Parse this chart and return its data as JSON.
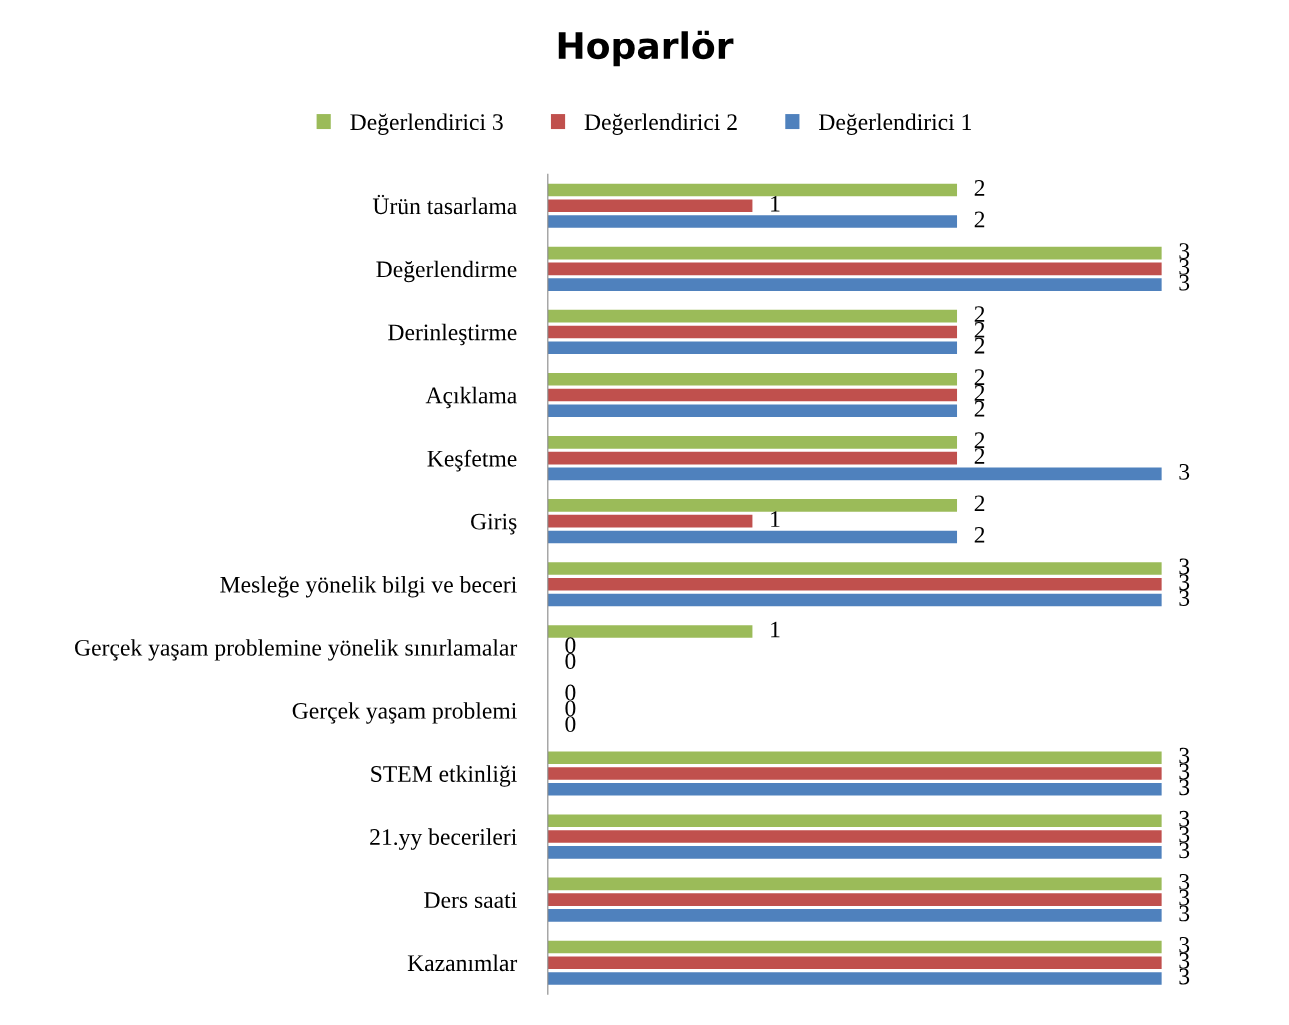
{
  "chart_data": {
    "type": "bar",
    "orientation": "horizontal",
    "title": "Hoparlör",
    "categories": [
      "Ürün tasarlama",
      "Değerlendirme",
      "Derinleştirme",
      "Açıklama",
      "Keşfetme",
      "Giriş",
      "Mesleğe yönelik bilgi ve beceri",
      "Gerçek yaşam problemine yönelik sınırlamalar",
      "Gerçek yaşam problemi",
      "STEM etkinliği",
      "21.yy becerileri",
      "Ders saati",
      "Kazanımlar"
    ],
    "series": [
      {
        "name": "Değerlendirici 3",
        "color": "#9bbb59",
        "values": [
          2,
          3,
          2,
          2,
          2,
          2,
          3,
          1,
          0,
          3,
          3,
          3,
          3
        ]
      },
      {
        "name": "Değerlendirici 2",
        "color": "#c0504d",
        "values": [
          1,
          3,
          2,
          2,
          2,
          1,
          3,
          0,
          0,
          3,
          3,
          3,
          3
        ]
      },
      {
        "name": "Değerlendirici 1",
        "color": "#4f81bd",
        "values": [
          2,
          3,
          2,
          2,
          3,
          2,
          3,
          0,
          0,
          3,
          3,
          3,
          3
        ]
      }
    ],
    "data_labels": true,
    "legend": "top",
    "grid": false,
    "tick_labels": "y"
  }
}
